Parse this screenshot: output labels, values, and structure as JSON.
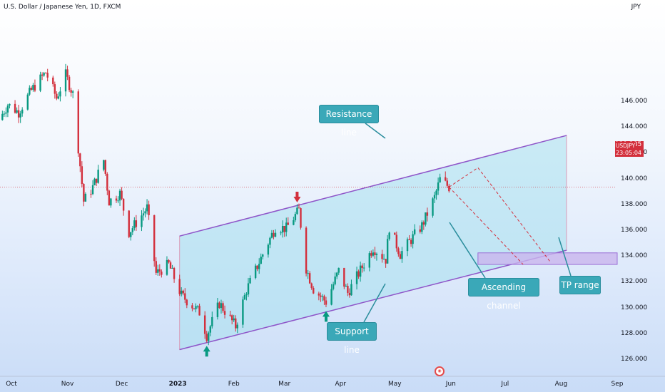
{
  "header": {
    "symbol_title": "U.S. Dollar / Japanese Yen, 1D, FXCM",
    "currency": "JPY"
  },
  "price_badge": {
    "symbol": "USDJPY",
    "price": "139.385",
    "countdown": "23:05:04"
  },
  "annotations": {
    "resistance": "Resistance line",
    "support": "Support line",
    "channel": "Ascending channel",
    "tp": "TP range"
  },
  "colors": {
    "up": "#089981",
    "down": "#d32f3c",
    "channel_fill": "#a7e0ee",
    "channel_line": "#8e55c9",
    "tp_zone": "#c9b5ee",
    "callout": "#3aa8b8"
  },
  "chart_data": {
    "type": "candlestick",
    "title": "U.S. Dollar / Japanese Yen, 1D, FXCM",
    "interval": "1D",
    "y_axis": {
      "label": "JPY",
      "range": [
        125.0,
        148.5
      ],
      "ticks": [
        126,
        128,
        130,
        132,
        134,
        136,
        138,
        140,
        142,
        144,
        146
      ]
    },
    "y_tick_labels": [
      "126.000",
      "128.000",
      "130.000",
      "132.000",
      "134.000",
      "136.000",
      "138.000",
      "140.000",
      "142.000",
      "144.000",
      "146.000"
    ],
    "x_tick_labels": [
      "Oct",
      "Nov",
      "Dec",
      "2023",
      "Feb",
      "Mar",
      "Apr",
      "May",
      "Jun",
      "Jul",
      "Aug",
      "Sep"
    ],
    "x_tick_dates": [
      "2022-10-01",
      "2022-11-01",
      "2022-12-01",
      "2023-01-01",
      "2023-02-01",
      "2023-03-01",
      "2023-04-01",
      "2023-05-01",
      "2023-06-01",
      "2023-07-01",
      "2023-08-01",
      "2023-09-01"
    ],
    "last_price": 139.385,
    "path_points": [
      [
        "2022-09-24",
        144.6
      ],
      [
        "2022-09-29",
        145.8
      ],
      [
        "2022-10-05",
        145.2
      ],
      [
        "2022-10-12",
        146.9
      ],
      [
        "2022-10-20",
        148.3
      ],
      [
        "2022-10-26",
        146.3
      ],
      [
        "2022-10-31",
        148.1
      ],
      [
        "2022-11-04",
        146.6
      ],
      [
        "2022-11-10",
        138.3
      ],
      [
        "2022-11-15",
        139.4
      ],
      [
        "2022-11-21",
        141.5
      ],
      [
        "2022-11-24",
        138.3
      ],
      [
        "2022-11-30",
        138.9
      ],
      [
        "2022-12-05",
        135.9
      ],
      [
        "2022-12-12",
        137.2
      ],
      [
        "2022-12-15",
        137.8
      ],
      [
        "2022-12-20",
        132.7
      ],
      [
        "2022-12-27",
        133.4
      ],
      [
        "2023-01-03",
        131.0
      ],
      [
        "2023-01-13",
        129.7
      ],
      [
        "2023-01-17",
        127.9
      ],
      [
        "2023-01-24",
        130.4
      ],
      [
        "2023-02-02",
        128.6
      ],
      [
        "2023-02-08",
        131.4
      ],
      [
        "2023-02-16",
        133.9
      ],
      [
        "2023-02-24",
        136.3
      ],
      [
        "2023-03-02",
        136.2
      ],
      [
        "2023-03-09",
        137.6
      ],
      [
        "2023-03-13",
        133.1
      ],
      [
        "2023-03-17",
        131.5
      ],
      [
        "2023-03-24",
        130.5
      ],
      [
        "2023-03-31",
        132.9
      ],
      [
        "2023-04-05",
        131.2
      ],
      [
        "2023-04-19",
        134.7
      ],
      [
        "2023-04-26",
        133.8
      ],
      [
        "2023-04-28",
        136.3
      ],
      [
        "2023-05-04",
        134.2
      ],
      [
        "2023-05-12",
        135.7
      ],
      [
        "2023-05-16",
        136.4
      ],
      [
        "2023-05-23",
        138.6
      ],
      [
        "2023-05-26",
        140.0
      ],
      [
        "2023-05-31",
        139.4
      ]
    ],
    "channel": {
      "upper": [
        [
          "2023-01-02",
          135.6
        ],
        [
          "2023-08-04",
          143.4
        ]
      ],
      "lower": [
        [
          "2023-01-02",
          126.8
        ],
        [
          "2023-08-04",
          134.5
        ]
      ]
    },
    "tp_range": {
      "from": 133.4,
      "to": 134.3,
      "start": "2023-06-16"
    },
    "projection": [
      [
        "2023-05-31",
        139.4
      ],
      [
        "2023-06-16",
        140.9
      ],
      [
        "2023-07-26",
        133.6
      ]
    ],
    "markers": [
      {
        "kind": "top",
        "date": "2023-03-08",
        "price": 138.1
      },
      {
        "kind": "bottom",
        "date": "2023-03-24",
        "price": 129.9
      },
      {
        "kind": "bottom",
        "date": "2023-01-17",
        "price": 127.2
      }
    ],
    "grid": false
  }
}
